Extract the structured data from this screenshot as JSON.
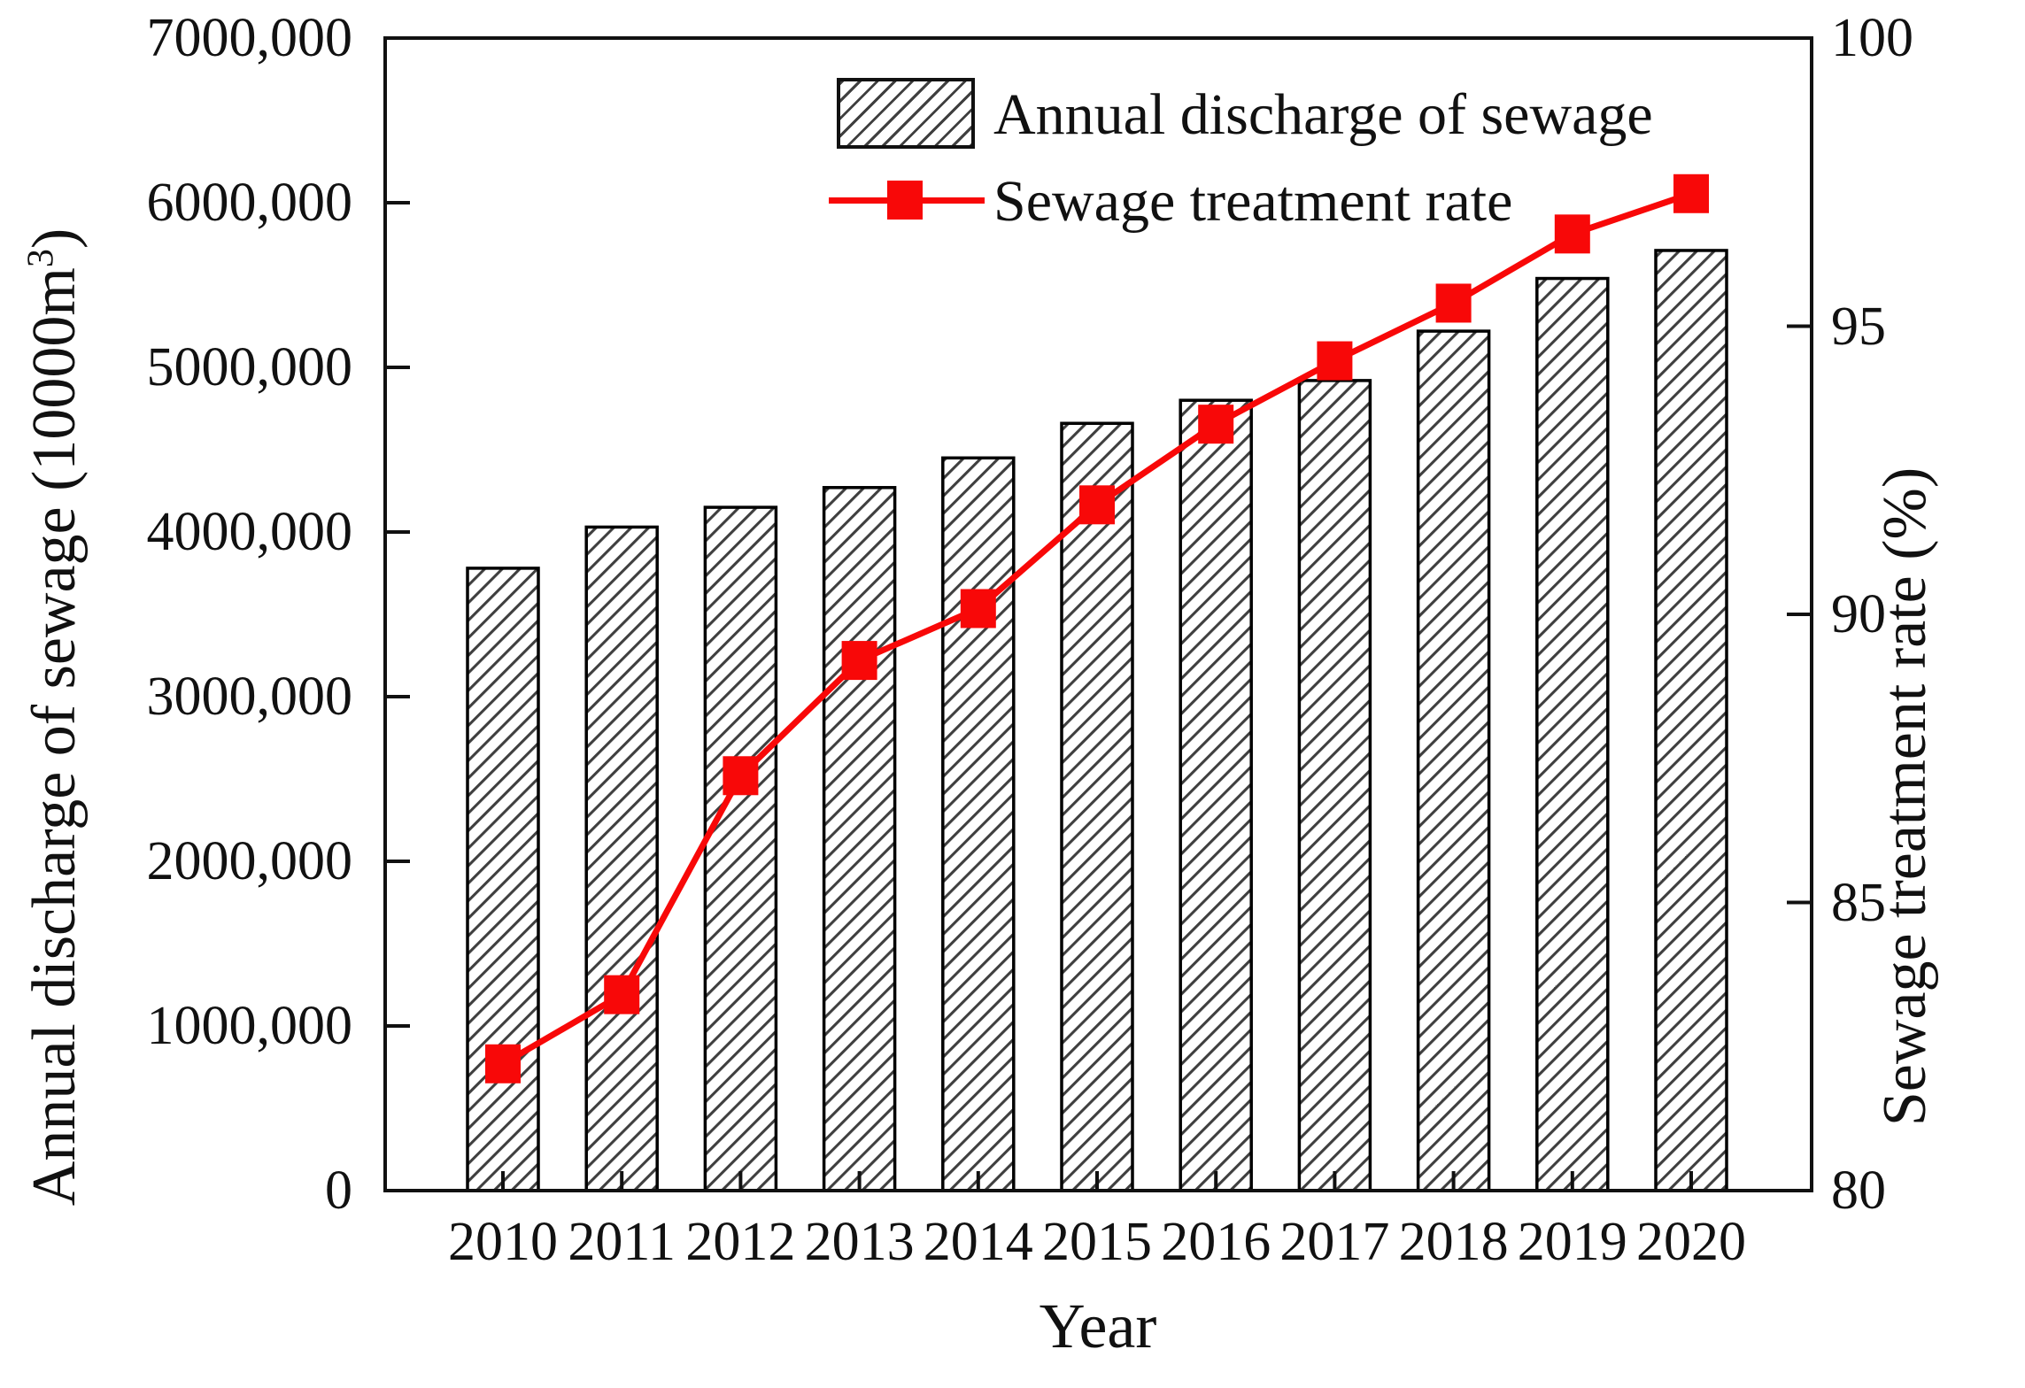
{
  "figure": {
    "xlabel": "Year",
    "ylabel_left": {
      "pre": "Annual discharge of sewage (10000m",
      "sup": "3",
      "post": ")"
    },
    "ylabel_right": "Sewage treatment rate (%)",
    "legend": [
      {
        "label": "Annual discharge of sewage",
        "swatch": "hatched-bar-swatch"
      },
      {
        "label": "Sewage treatment rate",
        "swatch": "red-line-square-marker"
      }
    ],
    "colors": {
      "line": "#f80808",
      "marker": "#f80808",
      "bar_fill": "#ffffff",
      "bar_border": "#000000",
      "hatch": "#3f3f3f",
      "axis": "#111111",
      "text": "#111111"
    }
  },
  "chart_data": {
    "type": "bar",
    "categories": [
      "2010",
      "2011",
      "2012",
      "2013",
      "2014",
      "2015",
      "2016",
      "2017",
      "2018",
      "2019",
      "2020"
    ],
    "series": [
      {
        "name": "Annual discharge of sewage",
        "type": "bar",
        "yaxis": "left",
        "values": [
          3780000,
          4030000,
          4150000,
          4270000,
          4450000,
          4660000,
          4800000,
          4920000,
          5220000,
          5540000,
          5710000
        ]
      },
      {
        "name": "Sewage treatment rate",
        "type": "line",
        "yaxis": "right",
        "values": [
          82.2,
          83.4,
          87.2,
          89.2,
          90.1,
          91.9,
          93.3,
          94.4,
          95.4,
          96.6,
          97.3
        ]
      }
    ],
    "xlabel": "Year",
    "ylabel_left": "Annual discharge of sewage (10000m³)",
    "ylabel_right": "Sewage treatment rate (%)",
    "ylim_left": [
      0,
      7000000
    ],
    "ylim_right": [
      80,
      100
    ],
    "yticks_left": {
      "labels": [
        "0",
        "1000,000",
        "2000,000",
        "3000,000",
        "4000,000",
        "5000,000",
        "6000,000",
        "7000,000"
      ],
      "values": [
        0,
        1000000,
        2000000,
        3000000,
        4000000,
        5000000,
        6000000,
        7000000
      ]
    },
    "yticks_right": {
      "labels": [
        "80",
        "85",
        "90",
        "95",
        "100"
      ],
      "values": [
        80,
        85,
        90,
        95,
        100
      ]
    },
    "grid": false,
    "legend_position": "inside-top-center"
  }
}
